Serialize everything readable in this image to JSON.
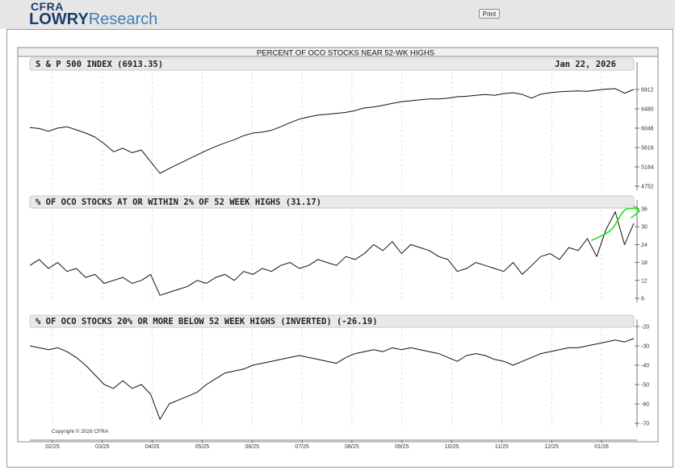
{
  "header": {
    "logo_line1": "CFRA",
    "logo_bold": "LOWRY",
    "logo_light": "Research",
    "print_label": "Print"
  },
  "chart_data": [
    {
      "type": "line",
      "panel_title": "PERCENT OF OCO STOCKS NEAR 52-WK HIGHS",
      "title": "S & P 500 INDEX (6913.35)",
      "date_label": "Jan 22, 2026",
      "y_ticks": [
        "6912",
        "6480",
        "6048",
        "5616",
        "5184",
        "4752"
      ],
      "ylim": [
        4752,
        6912
      ],
      "x_ticks": [
        "02/25",
        "03/25",
        "04/25",
        "05/25",
        "06/25",
        "07/25",
        "08/25",
        "09/25",
        "10/25",
        "11/25",
        "12/25",
        "01/26"
      ],
      "series": [
        {
          "values": [
            6060,
            6040,
            5980,
            6050,
            6080,
            6010,
            5940,
            5850,
            5700,
            5520,
            5600,
            5500,
            5560,
            5300,
            5040,
            5150,
            5250,
            5350,
            5450,
            5550,
            5640,
            5720,
            5790,
            5880,
            5940,
            5960,
            6000,
            6080,
            6170,
            6250,
            6300,
            6340,
            6360,
            6380,
            6400,
            6440,
            6500,
            6520,
            6560,
            6600,
            6640,
            6660,
            6680,
            6700,
            6700,
            6720,
            6750,
            6760,
            6780,
            6800,
            6780,
            6820,
            6840,
            6800,
            6720,
            6810,
            6840,
            6860,
            6870,
            6880,
            6870,
            6900,
            6920,
            6930,
            6830,
            6913
          ]
        }
      ]
    },
    {
      "type": "line",
      "title": "% OF OCO STOCKS AT OR WITHIN 2% OF 52 WEEK HIGHS (31.17)",
      "y_ticks": [
        "36",
        "30",
        "24",
        "18",
        "12",
        "6"
      ],
      "ylim": [
        6,
        36
      ],
      "series": [
        {
          "values": [
            17,
            19,
            16,
            18,
            15,
            16,
            13,
            14,
            11,
            12,
            13,
            11,
            12,
            14,
            7,
            8,
            9,
            10,
            12,
            11,
            13,
            14,
            12,
            15,
            14,
            16,
            15,
            17,
            18,
            16,
            17,
            19,
            18,
            17,
            20,
            19,
            21,
            24,
            22,
            25,
            21,
            24,
            23,
            22,
            20,
            19,
            15,
            16,
            18,
            17,
            16,
            15,
            18,
            14,
            17,
            20,
            21,
            19,
            23,
            22,
            26,
            20,
            29,
            35,
            24,
            31.17
          ]
        }
      ]
    },
    {
      "type": "line",
      "title": "% OF OCO STOCKS 20% OR MORE BELOW 52 WEEK HIGHS (INVERTED) (-26.19)",
      "y_ticks": [
        "-20",
        "-30",
        "-40",
        "-50",
        "-60",
        "-70"
      ],
      "ylim": [
        -70,
        -20
      ],
      "series": [
        {
          "values": [
            -30,
            -31,
            -32,
            -31,
            -33,
            -36,
            -40,
            -45,
            -50,
            -52,
            -48,
            -52,
            -50,
            -55,
            -68,
            -60,
            -58,
            -56,
            -54,
            -50,
            -47,
            -44,
            -43,
            -42,
            -40,
            -39,
            -38,
            -37,
            -36,
            -35,
            -36,
            -37,
            -38,
            -39,
            -36,
            -34,
            -33,
            -32,
            -33,
            -31,
            -32,
            -31,
            -32,
            -33,
            -34,
            -36,
            -38,
            -35,
            -34,
            -35,
            -37,
            -38,
            -40,
            -38,
            -36,
            -34,
            -33,
            -32,
            -31,
            -31,
            -30,
            -29,
            -28,
            -27,
            -28,
            -26.19
          ]
        }
      ]
    }
  ],
  "footer": {
    "copyright": "Copyright © 2026 CFRA"
  }
}
